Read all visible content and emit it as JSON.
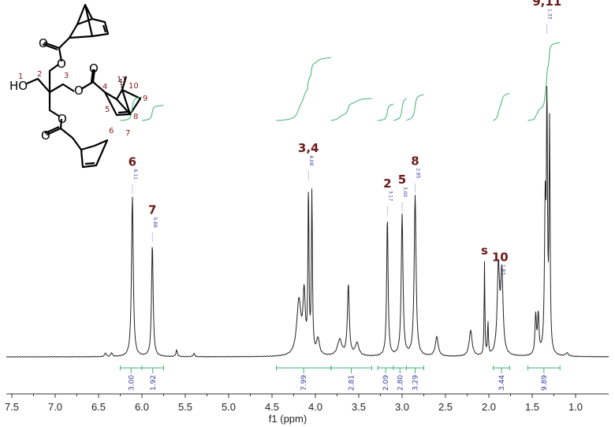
{
  "chart_data": {
    "type": "line",
    "title": "",
    "xlabel": "f1 (ppm)",
    "ylabel": "",
    "xlim": [
      7.65,
      0.65
    ],
    "x_reversed": true,
    "grid": false,
    "xticks": [
      "7.5",
      "7.0",
      "6.5",
      "6.0",
      "5.5",
      "5.0",
      "4.5",
      "4.0",
      "3.5",
      "3.0",
      "2.5",
      "2.0",
      "1.5",
      "1.0"
    ],
    "colors": {
      "spectrum": "#222222",
      "integral": "#3cb371",
      "peak_label": "#6b1a1a",
      "value": "#3a3aa0"
    },
    "peaks": [
      {
        "ppm": 6.42,
        "height": 0.012,
        "width": 0.01
      },
      {
        "ppm": 6.35,
        "height": 0.012,
        "width": 0.01
      },
      {
        "ppm": 6.11,
        "height": 0.5,
        "width": 0.012
      },
      {
        "ppm": 5.88,
        "height": 0.35,
        "width": 0.011
      },
      {
        "ppm": 5.6,
        "height": 0.02,
        "width": 0.01
      },
      {
        "ppm": 5.4,
        "height": 0.01,
        "width": 0.01
      },
      {
        "ppm": 4.19,
        "height": 0.17,
        "width": 0.03
      },
      {
        "ppm": 4.13,
        "height": 0.18,
        "width": 0.015
      },
      {
        "ppm": 4.08,
        "height": 0.5,
        "width": 0.007
      },
      {
        "ppm": 4.04,
        "height": 0.5,
        "width": 0.007
      },
      {
        "ppm": 3.97,
        "height": 0.05,
        "width": 0.02
      },
      {
        "ppm": 3.72,
        "height": 0.05,
        "width": 0.03
      },
      {
        "ppm": 3.62,
        "height": 0.22,
        "width": 0.013
      },
      {
        "ppm": 3.52,
        "height": 0.04,
        "width": 0.025
      },
      {
        "ppm": 3.17,
        "height": 0.43,
        "width": 0.01
      },
      {
        "ppm": 3.0,
        "height": 0.44,
        "width": 0.012
      },
      {
        "ppm": 2.85,
        "height": 0.5,
        "width": 0.013
      },
      {
        "ppm": 2.6,
        "height": 0.06,
        "width": 0.02
      },
      {
        "ppm": 2.21,
        "height": 0.08,
        "width": 0.02
      },
      {
        "ppm": 2.05,
        "height": 0.29,
        "width": 0.005
      },
      {
        "ppm": 2.01,
        "height": 0.1,
        "width": 0.006
      },
      {
        "ppm": 1.89,
        "height": 0.27,
        "width": 0.016
      },
      {
        "ppm": 1.85,
        "height": 0.25,
        "width": 0.016
      },
      {
        "ppm": 1.46,
        "height": 0.12,
        "width": 0.01
      },
      {
        "ppm": 1.43,
        "height": 0.12,
        "width": 0.01
      },
      {
        "ppm": 1.35,
        "height": 0.45,
        "width": 0.01
      },
      {
        "ppm": 1.33,
        "height": 0.75,
        "width": 0.007
      },
      {
        "ppm": 1.3,
        "height": 0.7,
        "width": 0.007
      },
      {
        "ppm": 1.1,
        "height": 0.01,
        "width": 0.02
      }
    ],
    "peak_labels": [
      {
        "label": "6",
        "ppm": 6.11,
        "value": "6.11"
      },
      {
        "label": "7",
        "ppm": 5.88,
        "value": "5.88"
      },
      {
        "label": "3,4",
        "ppm": 4.08,
        "value": "4.08"
      },
      {
        "label": "2",
        "ppm": 3.17,
        "value": "3.17"
      },
      {
        "label": "5",
        "ppm": 3.0,
        "value": "3.00"
      },
      {
        "label": "8",
        "ppm": 2.85,
        "value": "2.85"
      },
      {
        "label": "s",
        "ppm": 2.05,
        "value": ""
      },
      {
        "label": "10",
        "ppm": 1.87,
        "value": "1.87"
      },
      {
        "label": "9,11",
        "ppm": 1.33,
        "value": "1.33"
      }
    ],
    "integrals": [
      {
        "from": 6.25,
        "to": 6.0,
        "value": "3.00"
      },
      {
        "from": 6.0,
        "to": 5.75,
        "value": "1.92"
      },
      {
        "from": 4.45,
        "to": 3.82,
        "value": "7.99"
      },
      {
        "from": 3.82,
        "to": 3.35,
        "value": "2.81"
      },
      {
        "from": 3.28,
        "to": 3.1,
        "value": "2.09"
      },
      {
        "from": 3.1,
        "to": 2.95,
        "value": "2.80"
      },
      {
        "from": 2.95,
        "to": 2.75,
        "value": "3.29"
      },
      {
        "from": 1.95,
        "to": 1.76,
        "value": "3.44"
      },
      {
        "from": 1.55,
        "to": 1.18,
        "value": "9.89"
      }
    ]
  },
  "structure": {
    "atoms": {
      "ho": "HO",
      "o": "O"
    },
    "numbers": [
      "1",
      "2",
      "3",
      "4",
      "5",
      "6",
      "7",
      "8",
      "9",
      "10",
      "11"
    ]
  }
}
